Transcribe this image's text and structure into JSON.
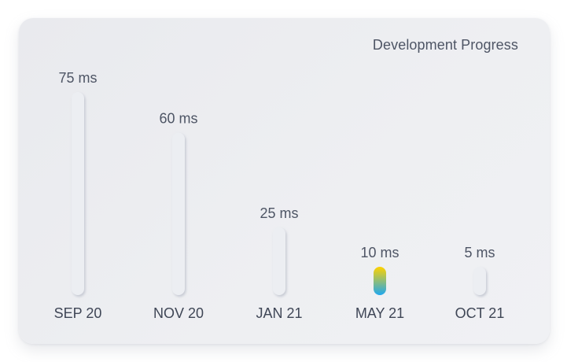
{
  "chart_data": {
    "type": "bar",
    "title": "Development Progress",
    "categories": [
      "SEP 20",
      "NOV 20",
      "JAN 21",
      "MAY 21",
      "OCT 21"
    ],
    "values": [
      75,
      60,
      25,
      10,
      5
    ],
    "value_labels": [
      "75 ms",
      "60 ms",
      "25 ms",
      "10 ms",
      "5 ms"
    ],
    "unit": "ms",
    "highlight_index": 3,
    "colors": {
      "bar_fill": "#eceef2",
      "highlight_top": "#ffd200",
      "highlight_bottom": "#1ea8f0"
    },
    "grid": false,
    "legend": "none"
  }
}
